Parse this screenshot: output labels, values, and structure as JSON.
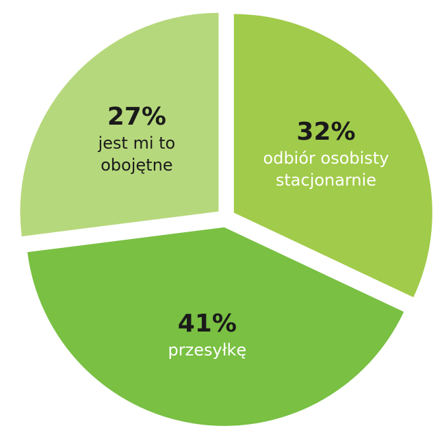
{
  "chart_data": {
    "type": "pie",
    "categories": [
      "odbiór osobisty stacjonarnie",
      "przesyłkę",
      "jest mi to obojętne"
    ],
    "values": [
      32,
      41,
      27
    ],
    "value_labels": [
      "32%",
      "41%",
      "27%"
    ],
    "colors": [
      "#a1cb4a",
      "#79c043",
      "#b6d87c"
    ],
    "start_angle": 0,
    "direction": "clockwise",
    "exploded": true
  }
}
